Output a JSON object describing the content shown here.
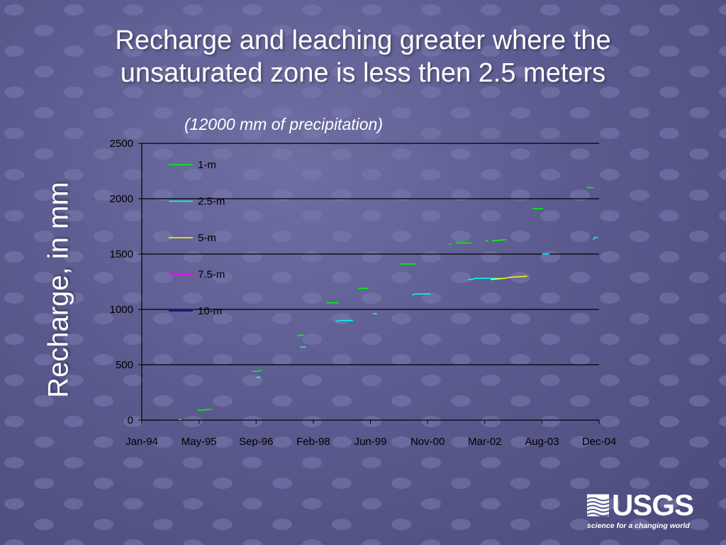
{
  "slide": {
    "title_line1": "Recharge and leaching greater where the",
    "title_line2": "unsaturated zone is less then 2.5 meters",
    "subtitle": "(12000 mm of precipitation)",
    "ylabel": "Recharge, in mm"
  },
  "logo": {
    "wordmark": "USGS",
    "tagline": "science for a changing world"
  },
  "colors": {
    "background": "#5b5b8f",
    "axis": "#000000",
    "gridline": "#000000",
    "text": "#ffffff",
    "series_1m": "#00ff00",
    "series_2_5m": "#00ffff",
    "series_5m": "#ffff00",
    "series_7_5m": "#ff00ff",
    "series_10m": "#000080"
  },
  "chart_data": {
    "type": "line",
    "title": "(12000 mm of precipitation)",
    "xlabel": "",
    "ylabel": "Recharge, in mm",
    "x_axis": "date",
    "xlim": [
      "1994-01-01",
      "2004-12-01"
    ],
    "x_tick_labels": [
      "Jan-94",
      "May-95",
      "Sep-96",
      "Feb-98",
      "Jun-99",
      "Nov-00",
      "Mar-02",
      "Aug-03",
      "Dec-04"
    ],
    "ylim": [
      0,
      2500
    ],
    "y_ticks": [
      0,
      500,
      1000,
      1500,
      2000,
      2500
    ],
    "grid": "horizontal",
    "legend_position": "upper-left inside plot",
    "series": [
      {
        "name": "1-m",
        "color": "#00ff00",
        "segments": [
          [
            [
              "1994-11-15",
              5
            ],
            [
              "1994-12-15",
              5
            ]
          ],
          [
            [
              "1995-05-01",
              90
            ],
            [
              "1995-06-15",
              90
            ],
            [
              "1995-07-15",
              95
            ],
            [
              "1995-09-01",
              100
            ]
          ],
          [
            [
              "1996-08-20",
              440
            ],
            [
              "1996-10-01",
              440
            ],
            [
              "1996-11-15",
              450
            ]
          ],
          [
            [
              "1997-09-15",
              760
            ],
            [
              "1997-11-15",
              770
            ]
          ],
          [
            [
              "1998-06-01",
              1060
            ],
            [
              "1998-09-15",
              1060
            ]
          ],
          [
            [
              "1999-03-01",
              1190
            ],
            [
              "1999-06-01",
              1190
            ]
          ],
          [
            [
              "2000-03-01",
              1410
            ],
            [
              "2000-07-15",
              1410
            ]
          ],
          [
            [
              "2001-05-01",
              1590
            ],
            [
              "2001-05-20",
              1590
            ]
          ],
          [
            [
              "2001-07-01",
              1600
            ],
            [
              "2001-11-15",
              1600
            ]
          ],
          [
            [
              "2002-03-15",
              1620
            ],
            [
              "2002-04-10",
              1620
            ]
          ],
          [
            [
              "2002-05-15",
              1620
            ],
            [
              "2002-09-15",
              1630
            ]
          ],
          [
            [
              "2003-05-01",
              1910
            ],
            [
              "2003-08-01",
              1910
            ]
          ],
          [
            [
              "2004-08-15",
              2100
            ],
            [
              "2004-10-15",
              2100
            ]
          ]
        ]
      },
      {
        "name": "2.5-m",
        "color": "#00ffff",
        "segments": [
          [
            [
              "1996-09-25",
              385
            ],
            [
              "1996-10-20",
              385
            ],
            [
              "1996-11-01",
              395
            ]
          ],
          [
            [
              "1997-10-15",
              660
            ],
            [
              "1997-12-01",
              660
            ]
          ],
          [
            [
              "1998-08-20",
              890
            ],
            [
              "1998-09-15",
              900
            ],
            [
              "1999-01-15",
              900
            ]
          ],
          [
            [
              "1999-07-10",
              960
            ],
            [
              "1999-08-15",
              960
            ]
          ],
          [
            [
              "2000-06-15",
              1130
            ],
            [
              "2000-07-15",
              1140
            ],
            [
              "2000-11-20",
              1140
            ]
          ],
          [
            [
              "2001-10-15",
              1270
            ],
            [
              "2001-11-15",
              1270
            ],
            [
              "2001-12-15",
              1280
            ],
            [
              "2002-08-15",
              1280
            ]
          ],
          [
            [
              "2003-07-25",
              1500
            ],
            [
              "2003-09-25",
              1500
            ]
          ],
          [
            [
              "2004-10-10",
              1630
            ],
            [
              "2004-10-25",
              1650
            ],
            [
              "2004-11-20",
              1650
            ]
          ]
        ]
      },
      {
        "name": "5-m",
        "color": "#ffff00",
        "segments": [
          [
            [
              "2002-05-01",
              1270
            ],
            [
              "2002-09-01",
              1280
            ],
            [
              "2002-10-15",
              1290
            ],
            [
              "2003-03-15",
              1300
            ]
          ]
        ]
      },
      {
        "name": "7.5-m",
        "color": "#ff00ff",
        "segments": []
      },
      {
        "name": "10-m",
        "color": "#000080",
        "segments": []
      }
    ]
  }
}
